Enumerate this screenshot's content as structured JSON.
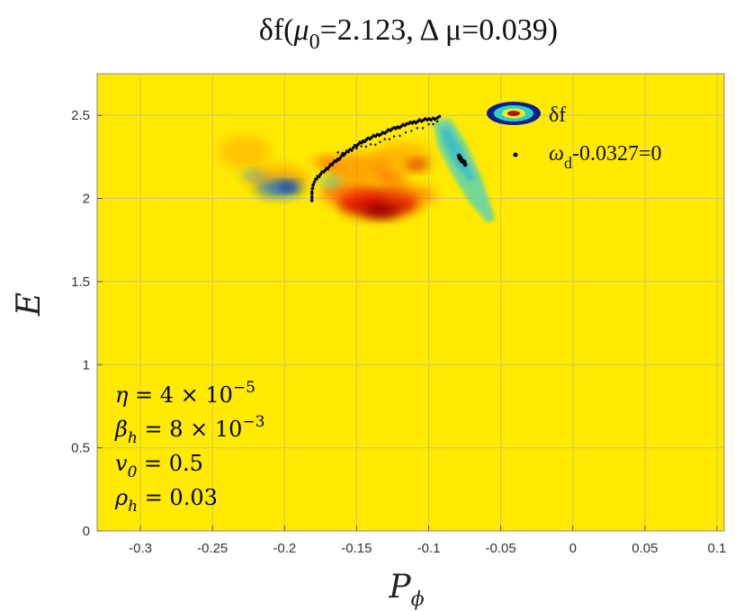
{
  "chart_data": {
    "type": "heatmap",
    "title": {
      "prefix": "δf(",
      "mu_sym": "μ",
      "mu_sub": "0",
      "mu_val": "=2.123, ",
      "delta": "Δ",
      "dmu": " μ=0.039)"
    },
    "xlabel": {
      "main": "P",
      "sub": "ϕ"
    },
    "ylabel": "E",
    "xlim": [
      -0.33,
      0.105
    ],
    "ylim": [
      0,
      2.75
    ],
    "xticks": [
      -0.3,
      -0.25,
      -0.2,
      -0.15,
      -0.1,
      -0.05,
      0,
      0.05,
      0.1
    ],
    "xtick_labels": [
      "-0.3",
      "-0.25",
      "-0.2",
      "-0.15",
      "-0.1",
      "-0.05",
      "0",
      "0.05",
      "0.1"
    ],
    "yticks": [
      0,
      0.5,
      1,
      1.5,
      2,
      2.5
    ],
    "ytick_labels": [
      "0",
      "0.5",
      "1",
      "1.5",
      "2",
      "2.5"
    ],
    "grid": true,
    "background_color": "#ffea00",
    "legend": {
      "position": "top-right",
      "entries": [
        {
          "label": "δf",
          "marker": "contour"
        },
        {
          "label_main": "ω",
          "label_sub": "d",
          "label_rest": "-0.0327=0",
          "marker": "dot"
        }
      ]
    },
    "parameters": [
      {
        "sym": "η",
        "sub": "",
        "eq": " = 4 × 10",
        "sup": "−5"
      },
      {
        "sym": "β",
        "sub": "h",
        "eq": " = 8 × 10",
        "sup": "−3"
      },
      {
        "sym": "v",
        "sub": "0",
        "eq": " = 0.5",
        "sup": ""
      },
      {
        "sym": "ρ",
        "sub": "h",
        "eq": " = 0.03",
        "sup": ""
      }
    ],
    "resonance_curve": [
      [
        -0.181,
        1.98
      ],
      [
        -0.181,
        2.04
      ],
      [
        -0.18,
        2.09
      ],
      [
        -0.177,
        2.13
      ],
      [
        -0.172,
        2.17
      ],
      [
        -0.165,
        2.22
      ],
      [
        -0.158,
        2.27
      ],
      [
        -0.15,
        2.32
      ],
      [
        -0.142,
        2.36
      ],
      [
        -0.133,
        2.39
      ],
      [
        -0.124,
        2.42
      ],
      [
        -0.114,
        2.45
      ],
      [
        -0.105,
        2.47
      ],
      [
        -0.097,
        2.48
      ],
      [
        -0.091,
        2.49
      ]
    ],
    "resonance_branch": [
      [
        -0.163,
        2.27
      ],
      [
        -0.15,
        2.3
      ],
      [
        -0.137,
        2.33
      ],
      [
        -0.124,
        2.37
      ],
      [
        -0.112,
        2.41
      ],
      [
        -0.1,
        2.44
      ],
      [
        -0.091,
        2.47
      ]
    ],
    "resonance_tail": [
      [
        -0.079,
        2.25
      ],
      [
        -0.076,
        2.22
      ],
      [
        -0.074,
        2.2
      ]
    ],
    "df_blobs": [
      {
        "x": -0.135,
        "y": 1.97,
        "rx": 0.028,
        "ry": 0.085,
        "color": "#cc0000",
        "opacity": 0.9
      },
      {
        "x": -0.133,
        "y": 1.93,
        "rx": 0.012,
        "ry": 0.04,
        "color": "#8a0000",
        "opacity": 0.9
      },
      {
        "x": -0.155,
        "y": 2.03,
        "rx": 0.02,
        "ry": 0.06,
        "color": "#ff3300",
        "opacity": 0.6
      },
      {
        "x": -0.115,
        "y": 2.02,
        "rx": 0.02,
        "ry": 0.06,
        "color": "#ff5500",
        "opacity": 0.55
      },
      {
        "x": -0.148,
        "y": 2.18,
        "rx": 0.024,
        "ry": 0.09,
        "color": "#ff6a00",
        "opacity": 0.55
      },
      {
        "x": -0.118,
        "y": 2.25,
        "rx": 0.02,
        "ry": 0.08,
        "color": "#ff8800",
        "opacity": 0.5
      },
      {
        "x": -0.205,
        "y": 2.12,
        "rx": 0.022,
        "ry": 0.08,
        "color": "#ff7700",
        "opacity": 0.45
      },
      {
        "x": -0.228,
        "y": 2.28,
        "rx": 0.018,
        "ry": 0.1,
        "color": "#ff9900",
        "opacity": 0.45
      },
      {
        "x": -0.204,
        "y": 2.06,
        "rx": 0.016,
        "ry": 0.05,
        "color": "#1a7fd6",
        "opacity": 0.85
      },
      {
        "x": -0.198,
        "y": 2.07,
        "rx": 0.008,
        "ry": 0.025,
        "color": "#0022aa",
        "opacity": 0.95
      },
      {
        "x": -0.222,
        "y": 2.14,
        "rx": 0.008,
        "ry": 0.025,
        "color": "#2aa8e0",
        "opacity": 0.7
      },
      {
        "x": -0.168,
        "y": 2.1,
        "rx": 0.008,
        "ry": 0.03,
        "color": "#29b6e8",
        "opacity": 0.6
      },
      {
        "x": -0.172,
        "y": 2.22,
        "rx": 0.008,
        "ry": 0.03,
        "color": "#ff3300",
        "opacity": 0.6
      },
      {
        "x": -0.108,
        "y": 2.2,
        "rx": 0.008,
        "ry": 0.03,
        "color": "#c80000",
        "opacity": 0.7
      },
      {
        "x": -0.125,
        "y": 2.12,
        "rx": 0.01,
        "ry": 0.035,
        "color": "#ff2200",
        "opacity": 0.55
      }
    ],
    "df_stripe_polygon": [
      [
        -0.097,
        2.47
      ],
      [
        -0.085,
        2.48
      ],
      [
        -0.074,
        2.33
      ],
      [
        -0.064,
        2.14
      ],
      [
        -0.054,
        1.88
      ],
      [
        -0.059,
        1.85
      ],
      [
        -0.072,
        1.98
      ],
      [
        -0.084,
        2.15
      ],
      [
        -0.094,
        2.32
      ]
    ],
    "df_stripe_inner": [
      [
        -0.092,
        2.42
      ],
      [
        -0.086,
        2.43
      ],
      [
        -0.076,
        2.28
      ],
      [
        -0.068,
        2.12
      ],
      [
        -0.072,
        2.1
      ],
      [
        -0.081,
        2.2
      ],
      [
        -0.089,
        2.32
      ]
    ]
  }
}
